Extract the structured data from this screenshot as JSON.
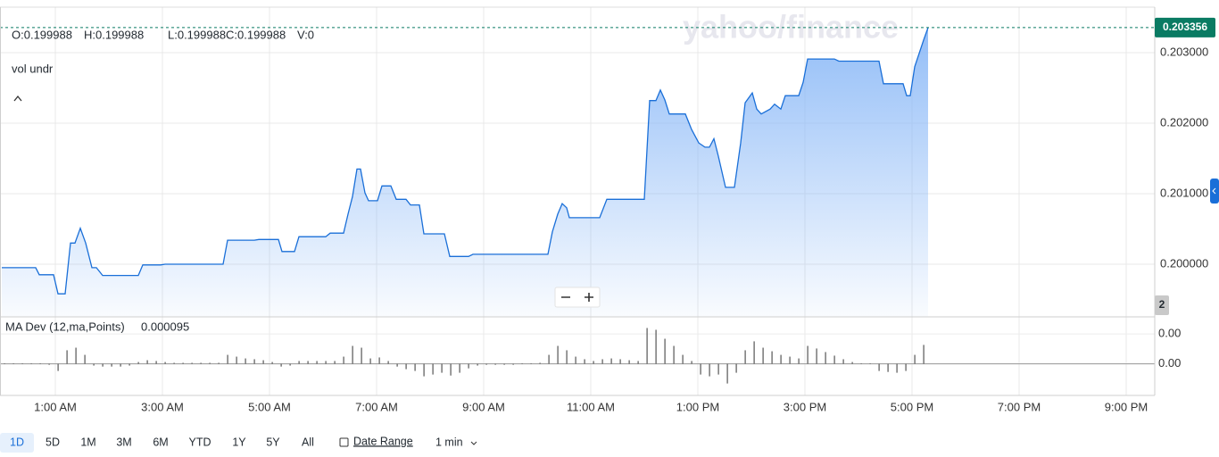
{
  "header": {
    "ohlcv": [
      "O:0.199988",
      "H:0.199988",
      "L:0.199988",
      "C:0.199988",
      "V:0"
    ],
    "symbol": "vol undr",
    "watermark": "yahoo/finance",
    "badge": "2"
  },
  "chart_data": [
    {
      "type": "area",
      "color": "#1a6fd8",
      "xlim": [
        "12:00 AM",
        "9:32 PM"
      ],
      "ylim": [
        0.199253,
        0.203646
      ],
      "yticks": [
        {
          "value": 0.2,
          "label": "0.200000"
        },
        {
          "value": 0.201,
          "label": "0.201000"
        },
        {
          "value": 0.202,
          "label": "0.202000"
        },
        {
          "value": 0.203,
          "label": "0.203000"
        }
      ],
      "price_label": {
        "value": 0.203356,
        "label": "0.203356"
      },
      "x": [
        "12:00 AM",
        "12:38 AM",
        "12:42 AM",
        "12:58 AM",
        "1:03 AM",
        "1:11 AM",
        "1:17 AM",
        "1:22 AM",
        "1:28 AM",
        "1:34 AM",
        "1:41 AM",
        "1:46 AM",
        "1:53 AM",
        "2:33 AM",
        "2:38 AM",
        "2:58 AM",
        "3:03 AM",
        "4:08 AM",
        "4:13 AM",
        "4:43 AM",
        "4:48 AM",
        "5:10 AM",
        "5:14 AM",
        "5:28 AM",
        "5:33 AM",
        "6:03 AM",
        "6:08 AM",
        "6:23 AM",
        "6:28 AM",
        "6:33 AM",
        "6:38 AM",
        "6:42 AM",
        "6:47 AM",
        "6:51 AM",
        "7:01 AM",
        "7:06 AM",
        "7:16 AM",
        "7:22 AM",
        "7:33 AM",
        "7:38 AM",
        "7:48 AM",
        "7:53 AM",
        "8:16 AM",
        "8:22 AM",
        "8:43 AM",
        "8:48 AM",
        "10:12 AM",
        "10:17 AM",
        "10:23 AM",
        "10:28 AM",
        "10:33 AM",
        "10:36 AM",
        "11:10 AM",
        "11:18 AM",
        "12:00 PM",
        "12:06 PM",
        "12:13 PM",
        "12:18 PM",
        "12:23 PM",
        "12:28 PM",
        "12:46 PM",
        "12:53 PM",
        "1:01 PM",
        "1:08 PM",
        "1:13 PM",
        "1:18 PM",
        "1:23 PM",
        "1:31 PM",
        "1:41 PM",
        "1:48 PM",
        "1:53 PM",
        "2:01 PM",
        "2:06 PM",
        "2:11 PM",
        "2:21 PM",
        "2:26 PM",
        "2:33 PM",
        "2:38 PM",
        "2:53 PM",
        "2:58 PM",
        "3:03 PM",
        "3:33 PM",
        "3:38 PM",
        "4:23 PM",
        "4:28 PM",
        "4:50 PM",
        "4:54 PM",
        "4:58 PM",
        "5:03 PM",
        "5:13 PM",
        "5:18 PM"
      ],
      "series": [
        {
          "values": [
            0.19995,
            0.19995,
            0.19985,
            0.19985,
            0.19958,
            0.19958,
            0.2003,
            0.2003,
            0.20051,
            0.2003,
            0.19995,
            0.19995,
            0.19984,
            0.19984,
            0.19999,
            0.19999,
            0.2,
            0.2,
            0.20034,
            0.20034,
            0.20035,
            0.20035,
            0.20018,
            0.20018,
            0.20039,
            0.20039,
            0.20044,
            0.20044,
            0.20071,
            0.20096,
            0.20135,
            0.20135,
            0.20101,
            0.2009,
            0.2009,
            0.20111,
            0.20111,
            0.20092,
            0.20092,
            0.20084,
            0.20084,
            0.20043,
            0.20043,
            0.20011,
            0.20011,
            0.20014,
            0.20014,
            0.20046,
            0.20071,
            0.20086,
            0.2008,
            0.20066,
            0.20066,
            0.20092,
            0.20092,
            0.20232,
            0.20232,
            0.20247,
            0.20233,
            0.20213,
            0.20213,
            0.20191,
            0.20172,
            0.20166,
            0.20166,
            0.20178,
            0.20153,
            0.20109,
            0.20109,
            0.20172,
            0.20229,
            0.20243,
            0.2022,
            0.20213,
            0.2022,
            0.20227,
            0.2022,
            0.20239,
            0.20239,
            0.20258,
            0.20291,
            0.20291,
            0.20288,
            0.20288,
            0.20256,
            0.20256,
            0.20239,
            0.20239,
            0.2028,
            0.20318,
            0.203356
          ]
        }
      ]
    },
    {
      "type": "bar",
      "title": "MA Dev (12,ma,Points)",
      "value_label": "0.000095",
      "color": "#555555",
      "xlim": [
        "12:00 AM",
        "9:32 PM"
      ],
      "ylim": [
        -0.000159,
        0.000236
      ],
      "yticks": [
        {
          "value": 0.00015,
          "label": "0.00"
        },
        {
          "value": 0,
          "label": "0.00"
        }
      ],
      "xticks": [
        "1:00 AM",
        "3:00 AM",
        "5:00 AM",
        "7:00 AM",
        "9:00 AM",
        "11:00 AM",
        "1:00 PM",
        "3:00 PM",
        "5:00 PM",
        "7:00 PM",
        "9:00 PM"
      ],
      "x": [
        "12:03 AM",
        "12:13 AM",
        "12:23 AM",
        "12:33 AM",
        "12:43 AM",
        "12:53 AM",
        "1:03 AM",
        "1:13 AM",
        "1:23 AM",
        "1:33 AM",
        "1:43 AM",
        "1:53 AM",
        "2:03 AM",
        "2:13 AM",
        "2:23 AM",
        "2:33 AM",
        "2:43 AM",
        "2:53 AM",
        "3:03 AM",
        "3:13 AM",
        "3:23 AM",
        "3:33 AM",
        "3:43 AM",
        "3:53 AM",
        "4:03 AM",
        "4:13 AM",
        "4:23 AM",
        "4:33 AM",
        "4:43 AM",
        "4:53 AM",
        "5:03 AM",
        "5:13 AM",
        "5:23 AM",
        "5:33 AM",
        "5:43 AM",
        "5:53 AM",
        "6:03 AM",
        "6:13 AM",
        "6:23 AM",
        "6:33 AM",
        "6:43 AM",
        "6:53 AM",
        "7:03 AM",
        "7:13 AM",
        "7:23 AM",
        "7:33 AM",
        "7:43 AM",
        "7:53 AM",
        "8:03 AM",
        "8:13 AM",
        "8:23 AM",
        "8:33 AM",
        "8:43 AM",
        "8:53 AM",
        "9:03 AM",
        "9:13 AM",
        "9:23 AM",
        "9:33 AM",
        "9:43 AM",
        "9:53 AM",
        "10:03 AM",
        "10:13 AM",
        "10:23 AM",
        "10:33 AM",
        "10:43 AM",
        "10:53 AM",
        "11:03 AM",
        "11:13 AM",
        "11:23 AM",
        "11:33 AM",
        "11:43 AM",
        "11:53 AM",
        "12:03 PM",
        "12:13 PM",
        "12:23 PM",
        "12:33 PM",
        "12:43 PM",
        "12:53 PM",
        "1:03 PM",
        "1:13 PM",
        "1:23 PM",
        "1:33 PM",
        "1:43 PM",
        "1:53 PM",
        "2:03 PM",
        "2:13 PM",
        "2:23 PM",
        "2:33 PM",
        "2:43 PM",
        "2:53 PM",
        "3:03 PM",
        "3:13 PM",
        "3:23 PM",
        "3:33 PM",
        "3:43 PM",
        "3:53 PM",
        "4:03 PM",
        "4:13 PM",
        "4:23 PM",
        "4:33 PM",
        "4:43 PM",
        "4:53 PM",
        "5:03 PM",
        "5:13 PM"
      ],
      "values": [
        2e-06,
        2e-06,
        2e-06,
        2e-06,
        2e-06,
        -5e-06,
        -3.6e-05,
        6.8e-05,
        8.1e-05,
        4.5e-05,
        -9e-06,
        -1.4e-05,
        -1.4e-05,
        -1.4e-05,
        -9e-06,
        9e-06,
        1.8e-05,
        1.4e-05,
        9e-06,
        5e-06,
        5e-06,
        5e-06,
        5e-06,
        5e-06,
        5e-06,
        4.5e-05,
        3.6e-05,
        2.7e-05,
        2.3e-05,
        1.8e-05,
        9e-06,
        -1.4e-05,
        -9e-06,
        1.4e-05,
        1.4e-05,
        1.4e-05,
        1.4e-05,
        1.4e-05,
        3.6e-05,
        9e-05,
        8.1e-05,
        2.7e-05,
        3.2e-05,
        1.4e-05,
        -1.4e-05,
        -2.7e-05,
        -3.6e-05,
        -6.3e-05,
        -5.4e-05,
        -4.5e-05,
        -5.9e-05,
        -4.5e-05,
        -2.3e-05,
        -9e-06,
        -5e-06,
        -5e-06,
        -5e-06,
        -5e-06,
        2e-06,
        2e-06,
        5e-06,
        4.5e-05,
        9e-05,
        6.8e-05,
        3.6e-05,
        2.3e-05,
        1.4e-05,
        2.3e-05,
        2.7e-05,
        2.3e-05,
        1.8e-05,
        1.4e-05,
        0.00018,
        0.000171,
        0.000126,
        9e-05,
        4.5e-05,
        1.4e-05,
        -5.4e-05,
        -6.3e-05,
        -5.4e-05,
        -9.9e-05,
        -4.5e-05,
        6.8e-05,
        0.000113,
        8.1e-05,
        6.3e-05,
        4.5e-05,
        3.6e-05,
        2.7e-05,
        9e-05,
        7.7e-05,
        5.9e-05,
        4.1e-05,
        2.3e-05,
        9e-06,
        2e-06,
        2e-06,
        -3.6e-05,
        -4.1e-05,
        -4.5e-05,
        -3.6e-05,
        4.5e-05,
        9.5e-05
      ]
    }
  ],
  "toolbar": {
    "ranges": [
      "1D",
      "5D",
      "1M",
      "3M",
      "6M",
      "YTD",
      "1Y",
      "5Y",
      "All"
    ],
    "date_range": "Date Range",
    "interval": "1 min"
  }
}
